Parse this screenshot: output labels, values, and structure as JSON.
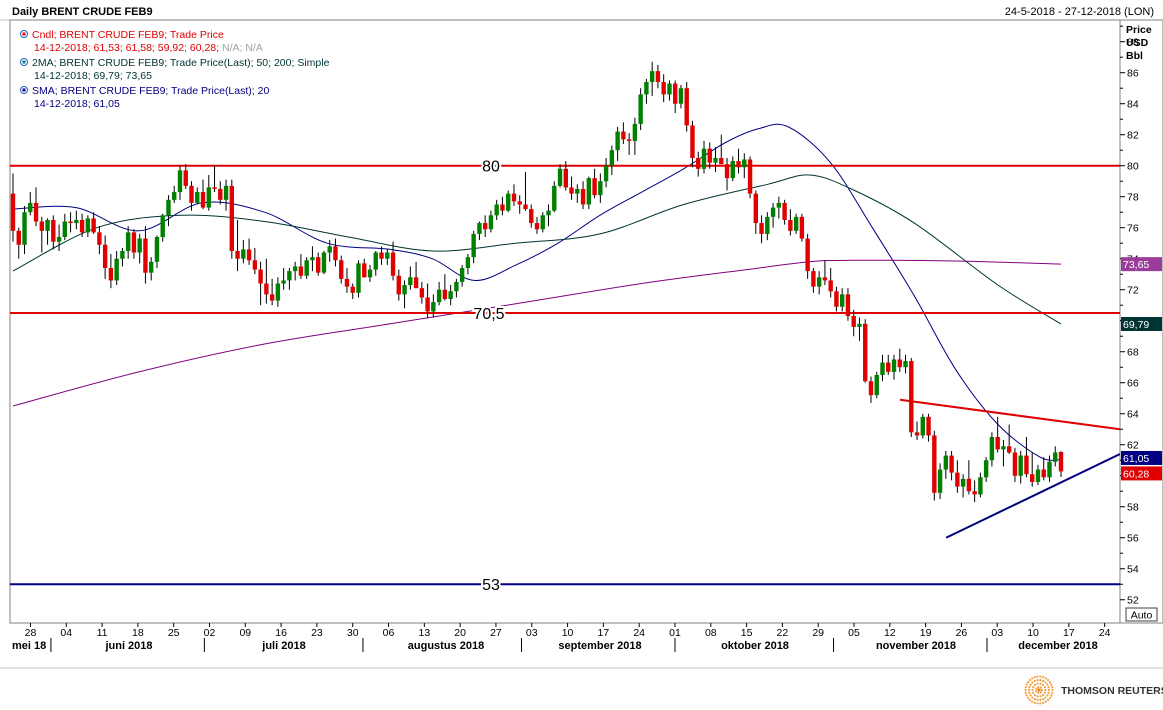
{
  "header": {
    "title": "Daily BRENT CRUDE FEB9",
    "date_range": "24-5-2018 - 27-12-2018 (LON)"
  },
  "legend": [
    {
      "icon": "candle-icon",
      "label": "Cndl; BRENT CRUDE FEB9; Trade Price",
      "values": "14-12-2018; 61,53; 61,58; 59,92; 60,28;",
      "extra": " N/A; N/A",
      "color": "#e00000"
    },
    {
      "icon": "ma-icon",
      "label": "2MA; BRENT CRUDE FEB9; Trade Price(Last);  50; 200; Simple",
      "values": "14-12-2018; 69,79; 73,65",
      "extra": "",
      "color": "#003333"
    },
    {
      "icon": "sma-icon",
      "label": "SMA; BRENT CRUDE FEB9; Trade Price(Last);  20",
      "values": "14-12-2018; 61,05",
      "extra": "",
      "color": "#000080"
    }
  ],
  "axis": {
    "y_title": [
      "Price",
      "USD",
      "Bbl"
    ],
    "y_ticks": [
      "88",
      "86",
      "84",
      "82",
      "80",
      "78",
      "76",
      "74",
      "72",
      "70",
      "68",
      "66",
      "64",
      "62",
      "60",
      "58",
      "56",
      "54",
      "52"
    ],
    "x_ticks": [
      "28",
      "04",
      "11",
      "18",
      "25",
      "02",
      "09",
      "16",
      "23",
      "30",
      "06",
      "13",
      "20",
      "27",
      "03",
      "10",
      "17",
      "24",
      "01",
      "08",
      "15",
      "22",
      "29",
      "05",
      "12",
      "19",
      "26",
      "03",
      "10",
      "17",
      "24"
    ],
    "months": [
      "mei 18",
      "juni 2018",
      "juli 2018",
      "augustus 2018",
      "september 2018",
      "oktober 2018",
      "november 2018",
      "december 2018"
    ],
    "auto_label": "Auto",
    "price_tags": [
      {
        "text": "73,65",
        "value": 73.65,
        "bg": "#9a3d9a"
      },
      {
        "text": "69,79",
        "value": 69.79,
        "bg": "#003333"
      },
      {
        "text": "61,05",
        "value": 61.05,
        "bg": "#000080"
      },
      {
        "text": "60,28",
        "value": 60.28,
        "bg": "#e00000"
      }
    ]
  },
  "annotations": [
    {
      "text": "80",
      "value": 80
    },
    {
      "text": "70,5",
      "value": 70.5
    },
    {
      "text": "53",
      "value": 53
    }
  ],
  "brand": {
    "name": "THOMSON REUTERS"
  },
  "chart_data": {
    "type": "candlestick",
    "title": "Daily BRENT CRUDE FEB9",
    "ylabel": "Price USD Bbl",
    "ylim": [
      50.5,
      89.4
    ],
    "date_range": [
      "2018-05-24",
      "2018-12-27"
    ],
    "grid": false,
    "last_candle": {
      "date": "14-12-2018",
      "open": 61.53,
      "high": 61.58,
      "low": 59.92,
      "close": 60.28
    },
    "horizontal_lines": [
      {
        "value": 80,
        "label": "80",
        "color": "#e00000"
      },
      {
        "value": 70.5,
        "label": "70,5",
        "color": "#e00000"
      },
      {
        "value": 53,
        "label": "53",
        "color": "#000080"
      }
    ],
    "trendlines": [
      {
        "color": "#e00000",
        "from": {
          "date": "2018-11-14",
          "value": 64.9
        },
        "to": {
          "date": "2018-12-27",
          "value": 63.0
        }
      },
      {
        "color": "#000080",
        "from": {
          "date": "2018-11-23",
          "value": 56.0
        },
        "to": {
          "date": "2018-12-27",
          "value": 61.4
        }
      }
    ],
    "series": [
      {
        "name": "SMA 20",
        "color": "#000080",
        "last": 61.05,
        "values": [
          [
            0,
            77.2
          ],
          [
            15,
            77.3
          ],
          [
            30,
            75.8
          ],
          [
            45,
            77.6
          ],
          [
            60,
            77.0
          ],
          [
            75,
            75.0
          ],
          [
            90,
            74.6
          ],
          [
            100,
            74.0
          ],
          [
            110,
            72.6
          ],
          [
            120,
            73.6
          ],
          [
            130,
            75.0
          ],
          [
            140,
            76.8
          ],
          [
            150,
            78.3
          ],
          [
            160,
            79.8
          ],
          [
            170,
            81.5
          ],
          [
            178,
            82.4
          ],
          [
            185,
            82.5
          ],
          [
            195,
            80.2
          ],
          [
            205,
            76.0
          ],
          [
            215,
            71.6
          ],
          [
            225,
            66.8
          ],
          [
            235,
            63.3
          ],
          [
            245,
            61.2
          ],
          [
            250,
            61.05
          ]
        ]
      },
      {
        "name": "MA 50",
        "color": "#003333",
        "last": 69.79,
        "values": [
          [
            0,
            73.2
          ],
          [
            20,
            76.0
          ],
          [
            40,
            76.8
          ],
          [
            60,
            76.4
          ],
          [
            80,
            75.4
          ],
          [
            100,
            74.5
          ],
          [
            120,
            75.0
          ],
          [
            140,
            75.6
          ],
          [
            160,
            77.5
          ],
          [
            180,
            78.8
          ],
          [
            190,
            79.4
          ],
          [
            200,
            78.5
          ],
          [
            215,
            76.3
          ],
          [
            235,
            72.3
          ],
          [
            250,
            69.79
          ]
        ]
      },
      {
        "name": "MA 200",
        "color": "#800080",
        "last": 73.65,
        "values": [
          [
            0,
            64.5
          ],
          [
            30,
            66.7
          ],
          [
            60,
            68.5
          ],
          [
            90,
            69.8
          ],
          [
            120,
            71.1
          ],
          [
            150,
            72.4
          ],
          [
            175,
            73.3
          ],
          [
            190,
            73.8
          ],
          [
            200,
            73.9
          ],
          [
            225,
            73.85
          ],
          [
            250,
            73.65
          ]
        ]
      }
    ],
    "candles": [
      [
        78.2,
        79.5,
        75.1,
        75.8
      ],
      [
        75.8,
        76.0,
        74.0,
        74.9
      ],
      [
        74.9,
        77.4,
        74.3,
        77.0
      ],
      [
        77.0,
        78.3,
        76.8,
        77.6
      ],
      [
        77.6,
        78.6,
        76.1,
        76.4
      ],
      [
        76.4,
        76.7,
        74.4,
        75.8
      ],
      [
        75.8,
        76.6,
        74.9,
        76.5
      ],
      [
        76.5,
        76.8,
        74.6,
        75.1
      ],
      [
        75.1,
        76.2,
        74.5,
        75.4
      ],
      [
        75.4,
        76.9,
        75.2,
        76.4
      ],
      [
        76.4,
        77.0,
        75.7,
        76.3
      ],
      [
        76.3,
        77.1,
        75.9,
        76.5
      ],
      [
        76.5,
        76.9,
        75.4,
        75.7
      ],
      [
        75.7,
        76.8,
        75.4,
        76.6
      ],
      [
        76.6,
        77.0,
        75.6,
        75.7
      ],
      [
        75.7,
        76.1,
        74.3,
        74.9
      ],
      [
        74.9,
        75.5,
        72.7,
        73.4
      ],
      [
        73.4,
        74.3,
        72.1,
        72.6
      ],
      [
        72.6,
        74.5,
        72.3,
        74.0
      ],
      [
        74.0,
        74.7,
        73.5,
        74.5
      ],
      [
        74.5,
        76.1,
        74.0,
        75.7
      ],
      [
        75.7,
        75.9,
        74.0,
        74.4
      ],
      [
        74.4,
        75.6,
        73.7,
        75.3
      ],
      [
        75.3,
        76.1,
        72.4,
        73.1
      ],
      [
        73.1,
        74.1,
        72.6,
        73.8
      ],
      [
        73.8,
        75.5,
        73.4,
        75.4
      ],
      [
        75.4,
        76.9,
        75.1,
        76.8
      ],
      [
        76.8,
        78.1,
        76.1,
        77.8
      ],
      [
        77.8,
        78.7,
        77.6,
        78.3
      ],
      [
        78.3,
        80.0,
        77.8,
        79.7
      ],
      [
        79.7,
        80.1,
        78.5,
        78.7
      ],
      [
        78.7,
        79.0,
        77.1,
        77.6
      ],
      [
        77.6,
        78.6,
        77.5,
        78.3
      ],
      [
        78.3,
        79.1,
        77.2,
        77.3
      ],
      [
        77.3,
        79.4,
        77.1,
        78.6
      ],
      [
        78.6,
        80.0,
        78.3,
        78.5
      ],
      [
        78.5,
        79.0,
        77.5,
        77.8
      ],
      [
        77.8,
        79.1,
        77.1,
        78.7
      ],
      [
        78.7,
        79.1,
        74.0,
        74.5
      ],
      [
        74.5,
        76.5,
        73.2,
        74.0
      ],
      [
        74.0,
        75.2,
        73.7,
        74.6
      ],
      [
        74.6,
        75.3,
        73.6,
        73.9
      ],
      [
        73.9,
        74.7,
        73.0,
        73.3
      ],
      [
        73.3,
        73.8,
        71.0,
        72.4
      ],
      [
        72.4,
        74.0,
        71.1,
        71.7
      ],
      [
        71.7,
        72.7,
        71.0,
        71.3
      ],
      [
        71.3,
        72.8,
        70.9,
        72.4
      ],
      [
        72.4,
        73.4,
        72.0,
        72.6
      ],
      [
        72.6,
        73.4,
        72.0,
        73.2
      ],
      [
        73.2,
        73.8,
        72.6,
        73.5
      ],
      [
        73.5,
        74.3,
        72.7,
        72.9
      ],
      [
        72.9,
        74.1,
        72.7,
        73.9
      ],
      [
        73.9,
        74.8,
        73.2,
        74.1
      ],
      [
        74.1,
        74.4,
        72.9,
        73.1
      ],
      [
        73.1,
        74.5,
        73.0,
        74.4
      ],
      [
        74.4,
        75.2,
        73.8,
        74.8
      ],
      [
        74.8,
        75.3,
        73.5,
        73.9
      ],
      [
        73.9,
        74.2,
        72.4,
        72.7
      ],
      [
        72.7,
        73.4,
        71.8,
        72.2
      ],
      [
        72.2,
        72.4,
        71.4,
        71.8
      ],
      [
        71.8,
        73.9,
        71.5,
        73.7
      ],
      [
        73.7,
        74.0,
        72.8,
        72.8
      ],
      [
        72.8,
        73.6,
        72.5,
        73.3
      ],
      [
        73.3,
        74.5,
        72.9,
        74.4
      ],
      [
        74.4,
        74.8,
        73.6,
        74.0
      ],
      [
        74.0,
        74.6,
        73.6,
        74.4
      ],
      [
        74.4,
        75.1,
        72.6,
        72.9
      ],
      [
        72.9,
        73.3,
        71.3,
        71.7
      ],
      [
        71.7,
        72.6,
        70.8,
        72.3
      ],
      [
        72.3,
        73.5,
        72.0,
        72.8
      ],
      [
        72.8,
        73.8,
        72.1,
        72.1
      ],
      [
        72.1,
        72.5,
        71.1,
        71.5
      ],
      [
        71.5,
        72.4,
        70.2,
        70.6
      ],
      [
        70.6,
        71.7,
        70.2,
        71.2
      ],
      [
        71.2,
        72.5,
        71.0,
        72.0
      ],
      [
        72.0,
        73.0,
        71.3,
        71.4
      ],
      [
        71.4,
        72.3,
        71.0,
        71.9
      ],
      [
        71.9,
        72.7,
        71.5,
        72.5
      ],
      [
        72.5,
        73.6,
        72.2,
        73.4
      ],
      [
        73.4,
        74.3,
        73.0,
        74.1
      ],
      [
        74.1,
        75.8,
        73.7,
        75.6
      ],
      [
        75.6,
        76.4,
        75.2,
        76.3
      ],
      [
        76.3,
        76.8,
        75.4,
        75.9
      ],
      [
        75.9,
        77.1,
        75.7,
        76.8
      ],
      [
        76.8,
        77.8,
        76.5,
        77.5
      ],
      [
        77.5,
        78.0,
        76.8,
        77.1
      ],
      [
        77.1,
        78.4,
        77.0,
        78.2
      ],
      [
        78.2,
        78.8,
        77.4,
        77.7
      ],
      [
        77.7,
        78.1,
        76.9,
        77.5
      ],
      [
        77.5,
        79.6,
        77.1,
        77.2
      ],
      [
        77.2,
        77.5,
        76.0,
        76.3
      ],
      [
        76.3,
        76.7,
        75.6,
        75.9
      ],
      [
        75.9,
        77.0,
        75.7,
        76.8
      ],
      [
        76.8,
        77.5,
        76.1,
        77.1
      ],
      [
        77.1,
        79.0,
        77.0,
        78.7
      ],
      [
        78.7,
        80.1,
        78.6,
        79.8
      ],
      [
        79.8,
        80.3,
        78.4,
        78.6
      ],
      [
        78.6,
        79.3,
        77.8,
        78.2
      ],
      [
        78.2,
        78.8,
        77.6,
        78.5
      ],
      [
        78.5,
        79.0,
        77.2,
        77.5
      ],
      [
        77.5,
        79.3,
        77.2,
        79.2
      ],
      [
        79.2,
        79.8,
        77.9,
        78.1
      ],
      [
        78.1,
        79.5,
        77.6,
        79.0
      ],
      [
        79.0,
        80.5,
        78.6,
        80.0
      ],
      [
        80.0,
        81.3,
        79.4,
        81.0
      ],
      [
        81.0,
        82.5,
        80.3,
        82.2
      ],
      [
        82.2,
        82.8,
        81.4,
        81.7
      ],
      [
        81.7,
        82.1,
        80.7,
        81.6
      ],
      [
        81.6,
        83.1,
        80.7,
        82.7
      ],
      [
        82.7,
        85.0,
        82.3,
        84.6
      ],
      [
        84.6,
        85.6,
        84.0,
        85.4
      ],
      [
        85.4,
        86.7,
        84.5,
        86.1
      ],
      [
        86.1,
        86.5,
        85.0,
        85.4
      ],
      [
        85.4,
        85.9,
        84.1,
        84.6
      ],
      [
        84.6,
        85.5,
        84.2,
        85.3
      ],
      [
        85.3,
        85.5,
        83.4,
        84.0
      ],
      [
        84.0,
        85.2,
        83.7,
        85.0
      ],
      [
        85.0,
        85.4,
        82.2,
        82.6
      ],
      [
        82.6,
        82.9,
        79.9,
        80.5
      ],
      [
        80.5,
        80.9,
        79.3,
        79.8
      ],
      [
        79.8,
        81.6,
        79.5,
        81.1
      ],
      [
        81.1,
        81.5,
        79.8,
        80.2
      ],
      [
        80.2,
        81.2,
        79.6,
        80.5
      ],
      [
        80.5,
        82.0,
        80.1,
        80.1
      ],
      [
        80.1,
        80.5,
        78.4,
        79.2
      ],
      [
        79.2,
        80.6,
        79.0,
        80.3
      ],
      [
        80.3,
        81.1,
        79.5,
        79.9
      ],
      [
        79.9,
        80.8,
        79.2,
        80.4
      ],
      [
        80.4,
        80.6,
        77.9,
        78.2
      ],
      [
        78.2,
        78.4,
        75.6,
        76.3
      ],
      [
        76.3,
        76.8,
        75.0,
        75.6
      ],
      [
        75.6,
        77.0,
        75.2,
        76.7
      ],
      [
        76.7,
        77.6,
        76.0,
        77.3
      ],
      [
        77.3,
        78.0,
        76.6,
        77.6
      ],
      [
        77.6,
        77.8,
        76.2,
        76.5
      ],
      [
        76.5,
        77.2,
        75.5,
        75.8
      ],
      [
        75.8,
        76.9,
        75.6,
        76.7
      ],
      [
        76.7,
        76.9,
        75.1,
        75.3
      ],
      [
        75.3,
        75.6,
        72.7,
        73.2
      ],
      [
        73.2,
        73.4,
        71.8,
        72.2
      ],
      [
        72.2,
        73.2,
        71.7,
        72.8
      ],
      [
        72.8,
        73.9,
        72.3,
        72.6
      ],
      [
        72.6,
        73.4,
        71.5,
        71.9
      ],
      [
        71.9,
        72.2,
        70.6,
        70.9
      ],
      [
        70.9,
        72.1,
        70.6,
        71.7
      ],
      [
        71.7,
        72.1,
        70.0,
        70.3
      ],
      [
        70.3,
        70.7,
        69.0,
        69.6
      ],
      [
        69.6,
        70.2,
        68.7,
        69.8
      ],
      [
        69.8,
        70.1,
        66.0,
        66.1
      ],
      [
        66.1,
        66.4,
        64.7,
        65.2
      ],
      [
        65.2,
        66.7,
        65.0,
        66.5
      ],
      [
        66.5,
        67.8,
        66.1,
        67.3
      ],
      [
        67.3,
        67.8,
        66.5,
        66.7
      ],
      [
        66.7,
        67.8,
        66.2,
        67.5
      ],
      [
        67.5,
        68.2,
        66.7,
        67.0
      ],
      [
        67.0,
        67.8,
        66.6,
        67.4
      ],
      [
        67.4,
        67.6,
        62.5,
        62.8
      ],
      [
        62.8,
        63.5,
        62.3,
        62.6
      ],
      [
        62.6,
        64.0,
        62.4,
        63.8
      ],
      [
        63.8,
        64.0,
        62.2,
        62.6
      ],
      [
        62.6,
        62.9,
        58.4,
        58.9
      ],
      [
        58.9,
        60.8,
        58.5,
        60.4
      ],
      [
        60.4,
        61.6,
        59.8,
        61.3
      ],
      [
        61.3,
        61.6,
        59.7,
        60.2
      ],
      [
        60.2,
        61.0,
        58.9,
        59.3
      ],
      [
        59.3,
        60.1,
        58.6,
        59.8
      ],
      [
        59.8,
        61.0,
        58.8,
        59.0
      ],
      [
        59.0,
        59.7,
        58.3,
        58.8
      ],
      [
        58.8,
        60.2,
        58.6,
        59.9
      ],
      [
        59.9,
        61.2,
        59.6,
        61.0
      ],
      [
        61.0,
        62.8,
        60.6,
        62.5
      ],
      [
        62.5,
        63.8,
        61.5,
        61.7
      ],
      [
        61.7,
        62.3,
        60.6,
        61.9
      ],
      [
        61.9,
        63.3,
        61.4,
        61.5
      ],
      [
        61.5,
        61.8,
        59.6,
        60.0
      ],
      [
        60.0,
        61.6,
        59.5,
        61.3
      ],
      [
        61.3,
        62.5,
        59.9,
        60.1
      ],
      [
        60.1,
        61.5,
        59.3,
        59.6
      ],
      [
        59.6,
        60.7,
        59.4,
        60.4
      ],
      [
        60.4,
        61.2,
        59.7,
        59.9
      ],
      [
        59.9,
        61.3,
        59.6,
        60.9
      ],
      [
        60.9,
        61.9,
        60.6,
        61.5
      ],
      [
        61.53,
        61.58,
        59.92,
        60.28
      ]
    ]
  }
}
